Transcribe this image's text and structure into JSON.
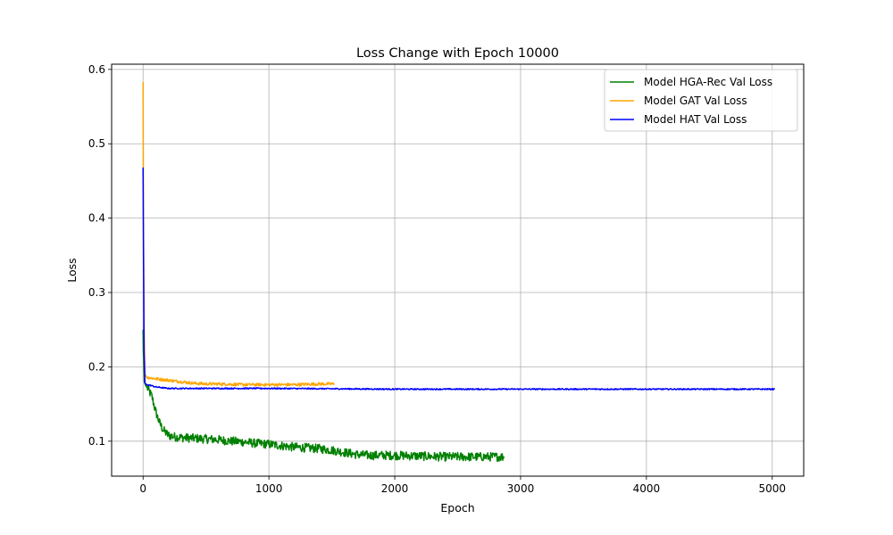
{
  "chart_data": {
    "type": "line",
    "title": "Loss Change with Epoch 10000",
    "xlabel": "Epoch",
    "ylabel": "Loss",
    "xlim": [
      -250,
      5250
    ],
    "ylim": [
      0.053,
      0.607
    ],
    "xticks": [
      0,
      1000,
      2000,
      3000,
      4000,
      5000
    ],
    "yticks": [
      0.1,
      0.2,
      0.3,
      0.4,
      0.5,
      0.6
    ],
    "xtick_labels": [
      "0",
      "1000",
      "2000",
      "3000",
      "4000",
      "5000"
    ],
    "ytick_labels": [
      "0.1",
      "0.2",
      "0.3",
      "0.4",
      "0.5",
      "0.6"
    ],
    "grid": true,
    "legend": "top-right",
    "series": [
      {
        "name": "Model HGA-Rec Val Loss",
        "color": "#008000",
        "noise": 0.006,
        "x": [
          0,
          2,
          5,
          10,
          20,
          40,
          70,
          100,
          130,
          160,
          200,
          250,
          300,
          400,
          500,
          600,
          700,
          800,
          900,
          1000,
          1100,
          1200,
          1300,
          1400,
          1500,
          1600,
          1700,
          1800,
          2000,
          2200,
          2400,
          2600,
          2870
        ],
        "y": [
          0.25,
          0.22,
          0.21,
          0.18,
          0.175,
          0.17,
          0.16,
          0.14,
          0.125,
          0.115,
          0.108,
          0.106,
          0.105,
          0.104,
          0.103,
          0.102,
          0.1,
          0.099,
          0.097,
          0.096,
          0.094,
          0.092,
          0.091,
          0.09,
          0.088,
          0.085,
          0.082,
          0.081,
          0.081,
          0.08,
          0.079,
          0.079,
          0.079
        ]
      },
      {
        "name": "Model GAT Val Loss",
        "color": "#ffa500",
        "noise": 0.002,
        "x": [
          0,
          3,
          8,
          15,
          30,
          60,
          100,
          150,
          200,
          250,
          300,
          350,
          400,
          500,
          600,
          800,
          1000,
          1200,
          1400,
          1520
        ],
        "y": [
          0.583,
          0.4,
          0.25,
          0.19,
          0.186,
          0.185,
          0.184,
          0.183,
          0.182,
          0.181,
          0.18,
          0.179,
          0.178,
          0.177,
          0.177,
          0.176,
          0.176,
          0.176,
          0.177,
          0.177
        ]
      },
      {
        "name": "Model HAT Val Loss",
        "color": "#0000ff",
        "noise": 0.0008,
        "x": [
          0,
          3,
          8,
          15,
          30,
          60,
          100,
          150,
          200,
          400,
          1000,
          2000,
          3000,
          4000,
          5020
        ],
        "y": [
          0.468,
          0.36,
          0.22,
          0.178,
          0.176,
          0.175,
          0.173,
          0.172,
          0.171,
          0.171,
          0.171,
          0.17,
          0.17,
          0.17,
          0.17
        ]
      }
    ]
  }
}
